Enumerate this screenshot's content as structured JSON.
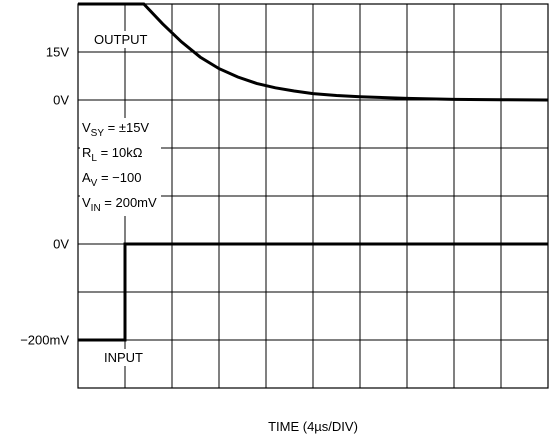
{
  "chart_data": {
    "type": "line",
    "title": "",
    "xlabel": "TIME (4µs/DIV)",
    "x_divisions": 10,
    "y_divisions": 8,
    "y_tick_labels": [
      {
        "text": "15V",
        "division": 1
      },
      {
        "text": "0V",
        "division": 2
      },
      {
        "text": "0V",
        "division": 5
      },
      {
        "text": "−200mV",
        "division": 7
      }
    ],
    "trace_labels": {
      "output": "OUTPUT",
      "input": "INPUT"
    },
    "conditions": [
      {
        "main": "V",
        "sub": "SY",
        "rest": " = ±15V"
      },
      {
        "main": "R",
        "sub": "L",
        "rest": " = 10kΩ"
      },
      {
        "main": "A",
        "sub": "V",
        "rest": " = −100"
      },
      {
        "main": "V",
        "sub": "IN",
        "rest": " = 200mV"
      }
    ],
    "series": [
      {
        "name": "OUTPUT",
        "unit": "V",
        "x_units": "divisions",
        "x": [
          0,
          1.4,
          1.8,
          2.2,
          2.6,
          3.0,
          3.4,
          3.8,
          4.2,
          4.6,
          5.0,
          5.5,
          6.0,
          7.0,
          8.0,
          9.0,
          10.0
        ],
        "y": [
          15,
          15,
          11.9,
          9.1,
          6.7,
          4.9,
          3.6,
          2.6,
          1.9,
          1.4,
          1.0,
          0.7,
          0.5,
          0.25,
          0.1,
          0.05,
          0
        ]
      },
      {
        "name": "INPUT",
        "unit": "mV",
        "x_units": "divisions",
        "x": [
          0,
          1.0,
          1.0,
          10.0
        ],
        "y": [
          -200,
          -200,
          0,
          0
        ]
      }
    ]
  }
}
